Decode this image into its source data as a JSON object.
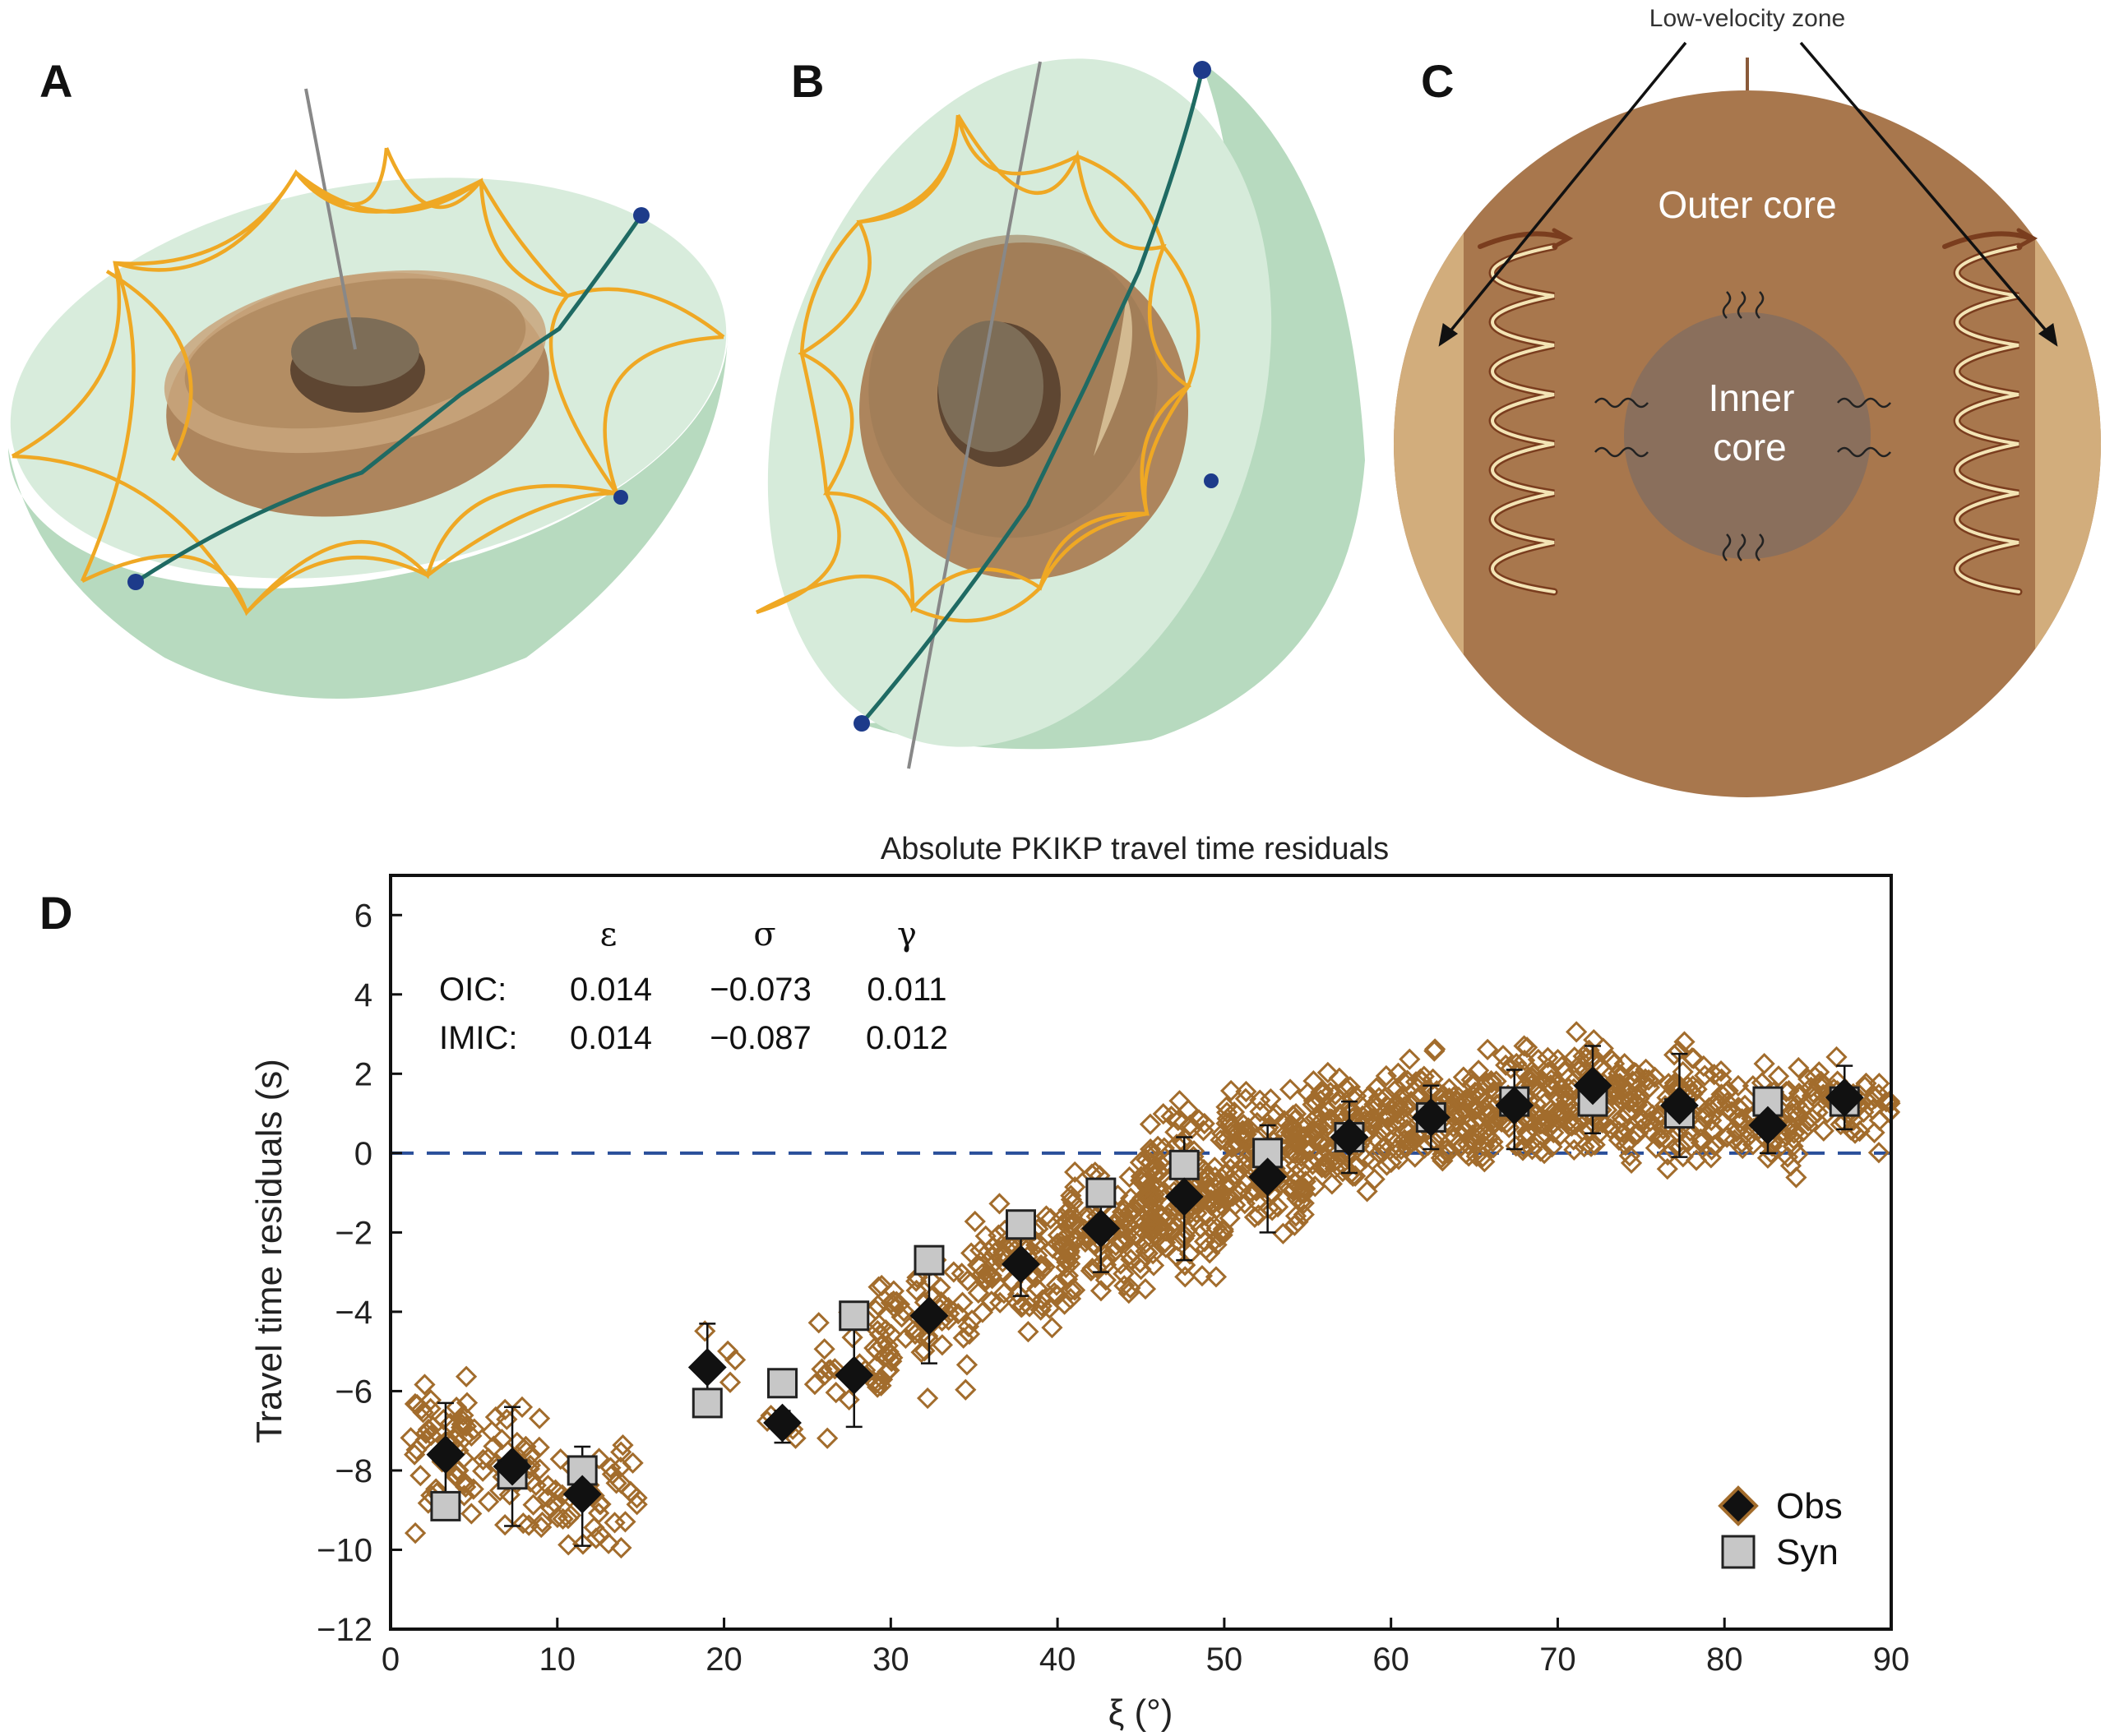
{
  "panels": {
    "a_label": "A",
    "b_label": "B",
    "c_label": "C",
    "d_label": "D"
  },
  "panel_c": {
    "low_velocity_zone": "Low-velocity zone",
    "outer_core": "Outer core",
    "inner_core_line1": "Inner",
    "inner_core_line2": "core"
  },
  "colors": {
    "mantle_green": "#cfe6d3",
    "mantle_side": "#b5d9bd",
    "outer_core": "#a8774d",
    "inner_core": "#8a6f5c",
    "lvz_band": "#d2ad7c",
    "ray_orange": "#efa824",
    "ray_teal": "#1f6a63",
    "station_blue": "#1d3b8a",
    "obs_marker": "#a26c2c",
    "zero_line": "#2a4f9a"
  },
  "chart_data": {
    "type": "scatter",
    "title": "Absolute PKIKP travel time residuals",
    "xlabel": "ξ (°)",
    "ylabel": "Travel time residuals (s)",
    "xlim": [
      0,
      90
    ],
    "ylim": [
      -12,
      7
    ],
    "x_ticks": [
      "0",
      "10",
      "20",
      "30",
      "40",
      "50",
      "60",
      "70",
      "80",
      "90"
    ],
    "y_ticks": [
      "−12",
      "−10",
      "−8",
      "−6",
      "−4",
      "−2",
      "0",
      "2",
      "4",
      "6"
    ],
    "reference_line": {
      "y": 0,
      "style": "dashed"
    },
    "legend": [
      {
        "name": "Obs",
        "marker": "diamond"
      },
      {
        "name": "Syn",
        "marker": "square"
      }
    ],
    "legend_position": "bottom-right",
    "parameter_table": {
      "headers": [
        "ε",
        "σ",
        "γ"
      ],
      "rows": [
        {
          "label": "OIC:",
          "values": [
            "0.014",
            "−0.073",
            "0.011"
          ]
        },
        {
          "label": "IMIC:",
          "values": [
            "0.014",
            "−0.087",
            "0.012"
          ]
        }
      ]
    },
    "series": [
      {
        "name": "Obs",
        "x": [
          3.3,
          7.3,
          11.5,
          19.0,
          23.5,
          27.8,
          32.3,
          37.8,
          42.6,
          47.6,
          52.6,
          57.5,
          62.4,
          67.4,
          72.1,
          77.3,
          82.6,
          87.2
        ],
        "y": [
          -7.6,
          -7.9,
          -8.6,
          -5.4,
          -6.8,
          -5.6,
          -4.1,
          -2.8,
          -1.9,
          -1.1,
          -0.6,
          0.4,
          0.9,
          1.2,
          1.7,
          1.2,
          0.7,
          1.4
        ],
        "err_low": [
          1.3,
          1.5,
          1.3,
          1.1,
          0.5,
          1.3,
          1.2,
          0.8,
          1.1,
          1.6,
          1.4,
          0.9,
          0.8,
          1.1,
          1.2,
          1.3,
          0.7,
          0.8
        ],
        "err_high": [
          1.3,
          1.5,
          1.2,
          1.1,
          0.3,
          1.2,
          1.2,
          0.8,
          1.0,
          1.5,
          1.3,
          0.9,
          0.8,
          0.9,
          1.0,
          1.3,
          0.6,
          0.8
        ]
      },
      {
        "name": "Syn",
        "x": [
          3.3,
          7.3,
          11.5,
          19.0,
          23.5,
          27.8,
          32.3,
          37.8,
          42.6,
          47.6,
          52.6,
          57.5,
          62.4,
          67.4,
          72.1,
          77.3,
          82.6,
          87.2
        ],
        "y": [
          -8.9,
          -8.1,
          -8.0,
          -6.3,
          -5.8,
          -4.1,
          -2.7,
          -1.8,
          -1.0,
          -0.3,
          0.0,
          0.4,
          0.9,
          1.3,
          1.3,
          1.0,
          1.3,
          1.3
        ]
      }
    ],
    "scatter_clusters": [
      {
        "x_range": [
          1,
          6
        ],
        "y_center": -7.6,
        "y_spread": 1.6,
        "count": 60
      },
      {
        "x_range": [
          6,
          9
        ],
        "y_center": -7.9,
        "y_spread": 1.3,
        "count": 30
      },
      {
        "x_range": [
          9,
          15
        ],
        "y_center": -8.6,
        "y_spread": 1.2,
        "count": 45
      },
      {
        "x_range": [
          18,
          21
        ],
        "y_center": -5.4,
        "y_spread": 0.9,
        "count": 4
      },
      {
        "x_range": [
          22,
          25
        ],
        "y_center": -6.8,
        "y_spread": 0.4,
        "count": 5
      },
      {
        "x_range": [
          25,
          30
        ],
        "y_center": -5.6,
        "y_spread": 1.2,
        "count": 25
      },
      {
        "x_range": [
          29,
          35
        ],
        "y_center": -4.1,
        "y_spread": 1.5,
        "count": 65
      },
      {
        "x_range": [
          35,
          41
        ],
        "y_center": -2.8,
        "y_spread": 1.2,
        "count": 90
      },
      {
        "x_range": [
          40,
          46
        ],
        "y_center": -1.9,
        "y_spread": 1.3,
        "count": 110
      },
      {
        "x_range": [
          45,
          50
        ],
        "y_center": -1.1,
        "y_spread": 1.7,
        "count": 140
      },
      {
        "x_range": [
          50,
          55
        ],
        "y_center": -0.4,
        "y_spread": 1.6,
        "count": 140
      },
      {
        "x_range": [
          55,
          60
        ],
        "y_center": 0.5,
        "y_spread": 1.3,
        "count": 120
      },
      {
        "x_range": [
          60,
          65
        ],
        "y_center": 0.9,
        "y_spread": 1.2,
        "count": 110
      },
      {
        "x_range": [
          65,
          70
        ],
        "y_center": 1.2,
        "y_spread": 1.2,
        "count": 110
      },
      {
        "x_range": [
          70,
          75
        ],
        "y_center": 1.4,
        "y_spread": 1.4,
        "count": 110
      },
      {
        "x_range": [
          75,
          80
        ],
        "y_center": 1.1,
        "y_spread": 1.4,
        "count": 85
      },
      {
        "x_range": [
          80,
          85
        ],
        "y_center": 0.8,
        "y_spread": 1.1,
        "count": 70
      },
      {
        "x_range": [
          85,
          90
        ],
        "y_center": 1.3,
        "y_spread": 0.9,
        "count": 60
      }
    ]
  }
}
